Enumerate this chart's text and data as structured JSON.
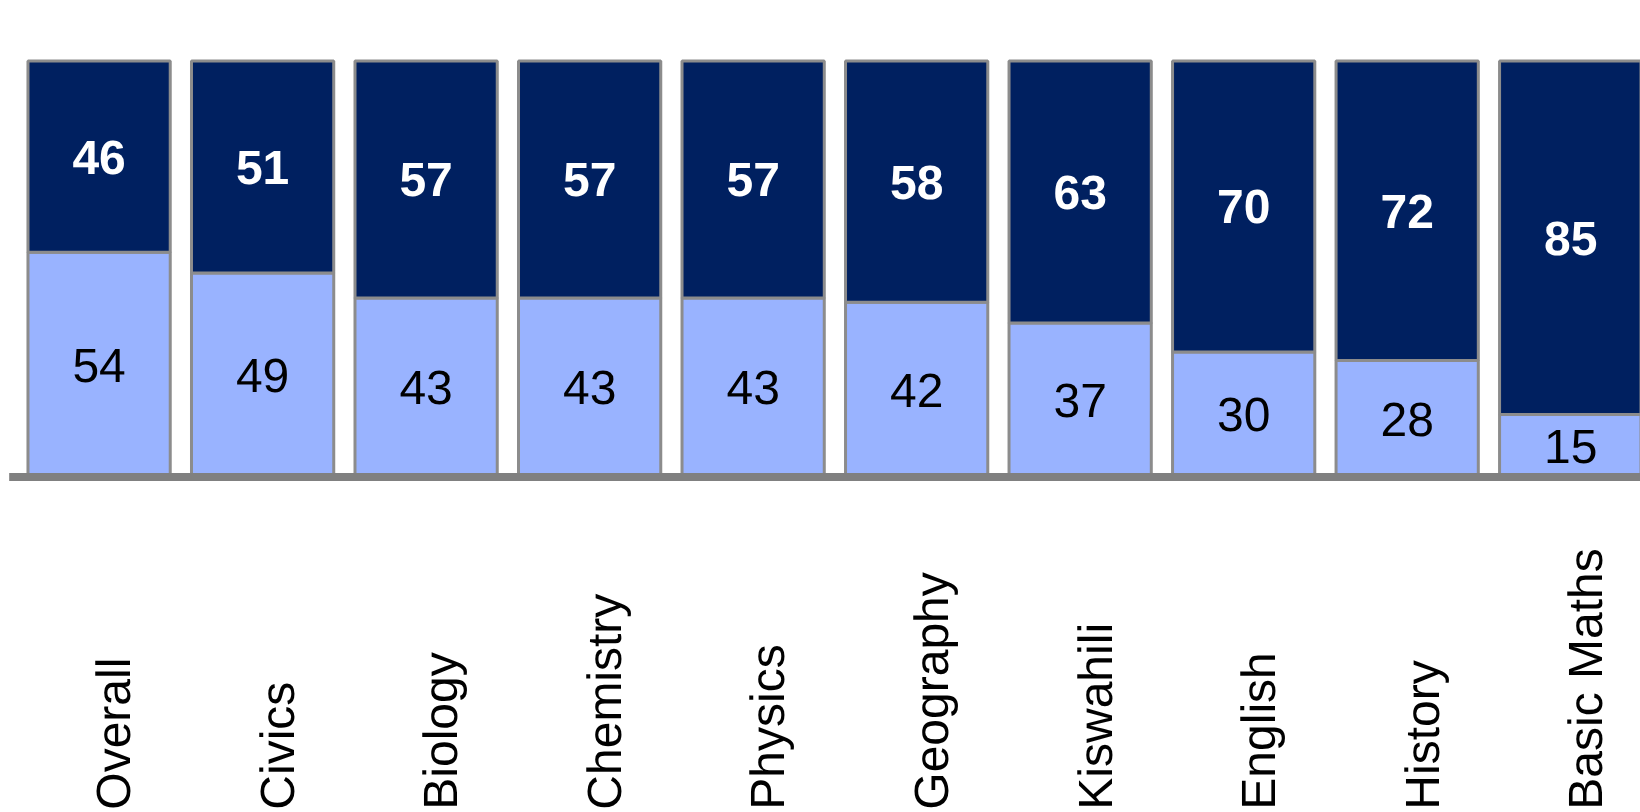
{
  "chart_data": {
    "type": "bar",
    "stacked": true,
    "data_labels": true,
    "categories": [
      "Overall",
      "Civics",
      "Biology",
      "Chemistry",
      "Physics",
      "Geography",
      "Kiswahili",
      "English",
      "History",
      "Basic Maths"
    ],
    "series": [
      {
        "color": "#99b3ff",
        "values": [
          54,
          49,
          43,
          43,
          43,
          42,
          37,
          30,
          28,
          15
        ]
      },
      {
        "color": "#002060",
        "values": [
          46,
          51,
          57,
          57,
          57,
          58,
          63,
          70,
          72,
          85
        ]
      }
    ]
  }
}
